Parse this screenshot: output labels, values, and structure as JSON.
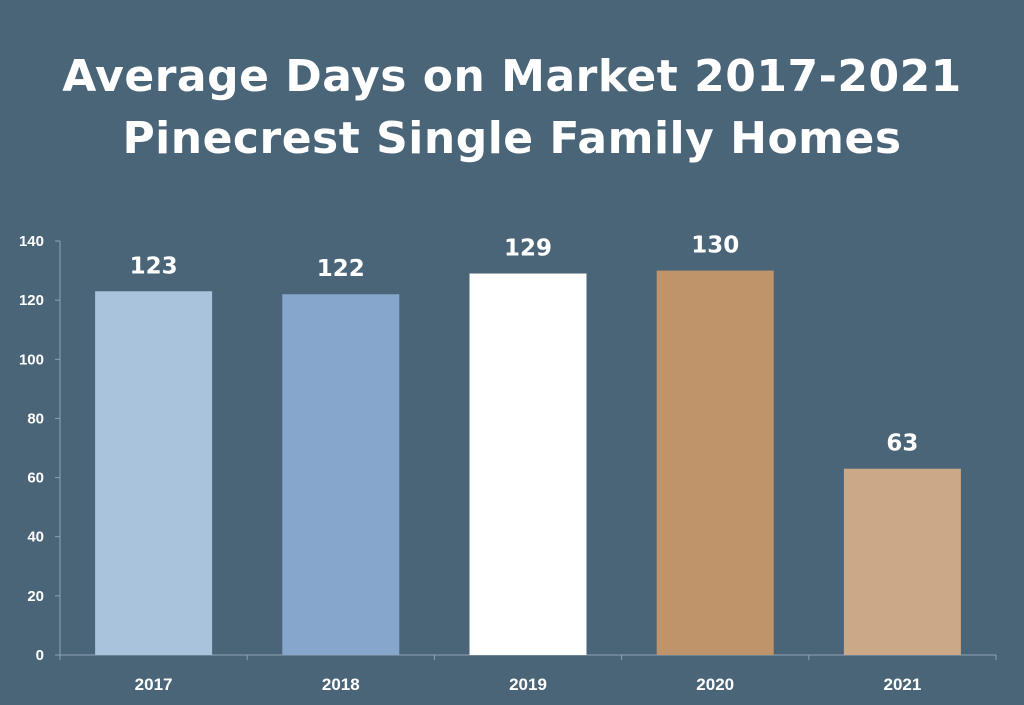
{
  "chart_data": {
    "type": "bar",
    "title": "Average Days on Market 2017-2021",
    "subtitle": "Pinecrest Single Family Homes",
    "xlabel": "",
    "ylabel": "",
    "categories": [
      "2017",
      "2018",
      "2019",
      "2020",
      "2021"
    ],
    "values": [
      123,
      122,
      129,
      130,
      63
    ],
    "data_labels": [
      "123",
      "122",
      "129",
      "130",
      "63"
    ],
    "bar_colors": [
      "#a9c3dc",
      "#87a6cb",
      "#ffffff",
      "#c0946a",
      "#cba886"
    ],
    "ylim": [
      0,
      140
    ],
    "yticks": [
      "0",
      "20",
      "40",
      "60",
      "80",
      "100",
      "120",
      "140"
    ],
    "grid": false,
    "legend": "none"
  },
  "colors": {
    "background": "#4a6478",
    "text": "#ffffff",
    "axis": "#8fa3b3"
  }
}
